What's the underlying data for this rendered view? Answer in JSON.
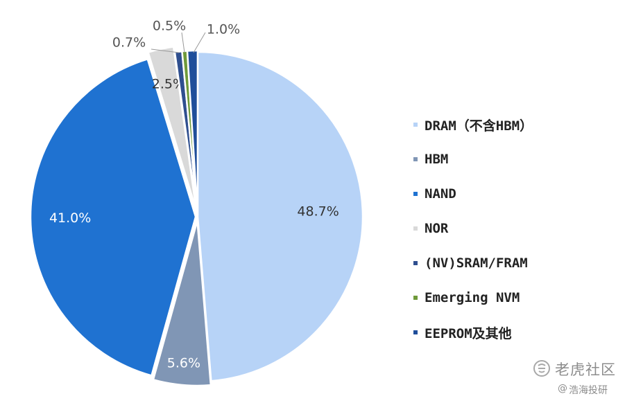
{
  "chart_data": {
    "type": "pie",
    "title": "",
    "start_angle_deg": 0,
    "direction": "clockwise",
    "slices": [
      {
        "label": "DRAM（不含HBM）",
        "value": 48.7,
        "value_label": "48.7%",
        "color": "#b7d3f7"
      },
      {
        "label": "HBM",
        "value": 5.6,
        "value_label": "5.6%",
        "color": "#8096b5"
      },
      {
        "label": "NAND",
        "value": 41.0,
        "value_label": "41.0%",
        "color": "#1f72d1"
      },
      {
        "label": "NOR",
        "value": 2.5,
        "value_label": "2.5%",
        "color": "#d9d9d9"
      },
      {
        "label": "(NV)SRAM/FRAM",
        "value": 0.7,
        "value_label": "0.7%",
        "color": "#2f4f8f"
      },
      {
        "label": "Emerging NVM",
        "value": 0.5,
        "value_label": "0.5%",
        "color": "#6f9a3a"
      },
      {
        "label": "EEPROM及其他",
        "value": 1.0,
        "value_label": "1.0%",
        "color": "#1f4e9a"
      }
    ],
    "legend_position": "right"
  },
  "watermark": {
    "title": "老虎社区",
    "at": "@",
    "subtitle": "浩海投研"
  }
}
